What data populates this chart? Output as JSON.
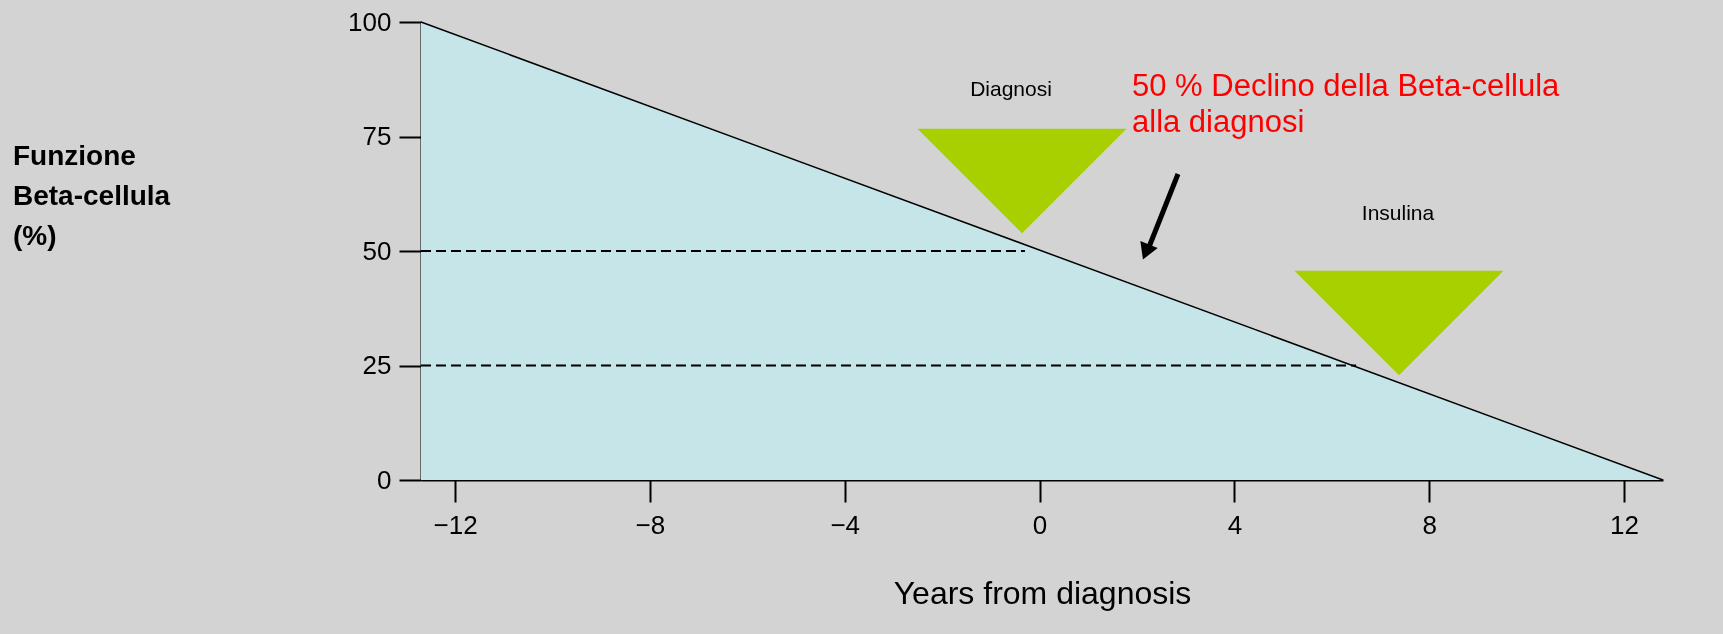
{
  "chart_data": {
    "type": "area",
    "xlabel": "Years from diagnosis",
    "xlim": [
      -12.7,
      12.8
    ],
    "ylim": [
      0,
      100
    ],
    "xticks": [
      -12,
      -8,
      -4,
      0,
      4,
      8,
      12
    ],
    "yticks": [
      0,
      25,
      50,
      75,
      100
    ],
    "grid": false,
    "series": [
      {
        "color": "#c5e5e8",
        "x": [
          -12.7,
          12.8
        ],
        "values": [
          100,
          0
        ]
      },
      {
        "type": "line",
        "line_style": "dashed",
        "color": "#000000",
        "x": [
          -12.7,
          -0.3
        ],
        "values": [
          50,
          50
        ]
      },
      {
        "type": "line",
        "line_style": "dashed",
        "color": "#000000",
        "x": [
          -12.7,
          6.5
        ],
        "values": [
          25,
          25
        ]
      }
    ],
    "annotations": [
      "Diagnosi",
      "Insulina",
      "50 % Declino della Beta-cellula\nalla diagnosi",
      "Funzione\nBeta-cellula\n (%)"
    ]
  }
}
